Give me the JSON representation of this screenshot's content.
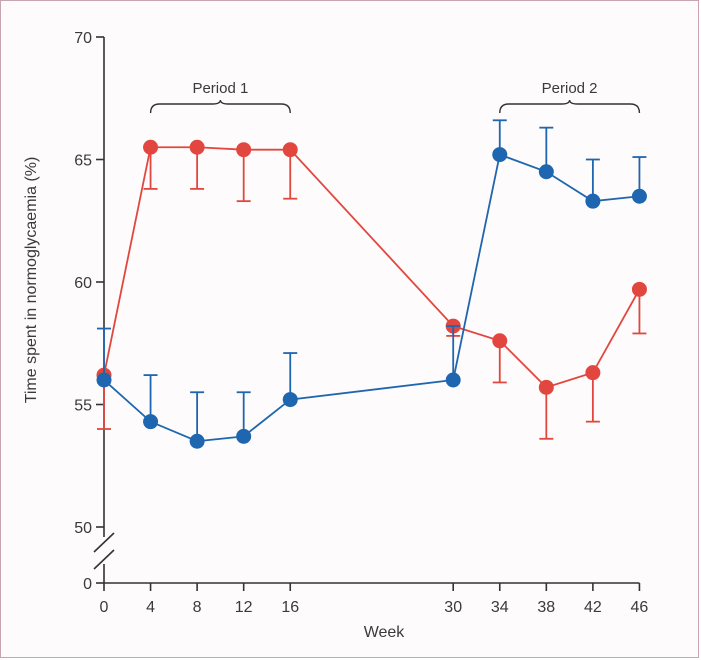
{
  "chart_data": {
    "type": "line",
    "title": "",
    "xlabel": "Week",
    "ylabel": "Time spent in normoglycaemia (%)",
    "xticks": [
      0,
      4,
      8,
      12,
      16,
      30,
      34,
      38,
      42,
      46
    ],
    "xtick_labels": [
      "0",
      "4",
      "8",
      "12",
      "16",
      "30",
      "34",
      "38",
      "42",
      "46"
    ],
    "yticks": [
      50,
      55,
      60,
      65,
      70
    ],
    "ytick_labels": [
      "50",
      "55",
      "60",
      "65",
      "70"
    ],
    "yzero_label": "0",
    "ylim": [
      50,
      70
    ],
    "axis_break": true,
    "grid": false,
    "annotations": [
      {
        "label": "Period 1",
        "x_start": 4,
        "x_end": 16
      },
      {
        "label": "Period 2",
        "x_start": 34,
        "x_end": 46
      }
    ],
    "series": [
      {
        "color": "#e2473f",
        "error_direction": "down",
        "points": [
          {
            "x": 0,
            "y": 56.2,
            "err": 2.2
          },
          {
            "x": 4,
            "y": 65.5,
            "err": 1.7
          },
          {
            "x": 8,
            "y": 65.5,
            "err": 1.7
          },
          {
            "x": 12,
            "y": 65.4,
            "err": 2.1
          },
          {
            "x": 16,
            "y": 65.4,
            "err": 2.0
          },
          {
            "x": 30,
            "y": 58.2,
            "err": 0.4
          },
          {
            "x": 34,
            "y": 57.6,
            "err": 1.7
          },
          {
            "x": 38,
            "y": 55.7,
            "err": 2.1
          },
          {
            "x": 42,
            "y": 56.3,
            "err": 2.0
          },
          {
            "x": 46,
            "y": 59.7,
            "err": 1.8
          }
        ]
      },
      {
        "color": "#1f66b0",
        "error_direction": "up",
        "points": [
          {
            "x": 0,
            "y": 56.0,
            "err": 2.1
          },
          {
            "x": 4,
            "y": 54.3,
            "err": 1.9
          },
          {
            "x": 8,
            "y": 53.5,
            "err": 2.0
          },
          {
            "x": 12,
            "y": 53.7,
            "err": 1.8
          },
          {
            "x": 16,
            "y": 55.2,
            "err": 1.9
          },
          {
            "x": 30,
            "y": 56.0,
            "err": 2.2
          },
          {
            "x": 34,
            "y": 65.2,
            "err": 1.4
          },
          {
            "x": 38,
            "y": 64.5,
            "err": 1.8
          },
          {
            "x": 42,
            "y": 63.3,
            "err": 1.7
          },
          {
            "x": 46,
            "y": 63.5,
            "err": 1.6
          }
        ]
      }
    ]
  }
}
